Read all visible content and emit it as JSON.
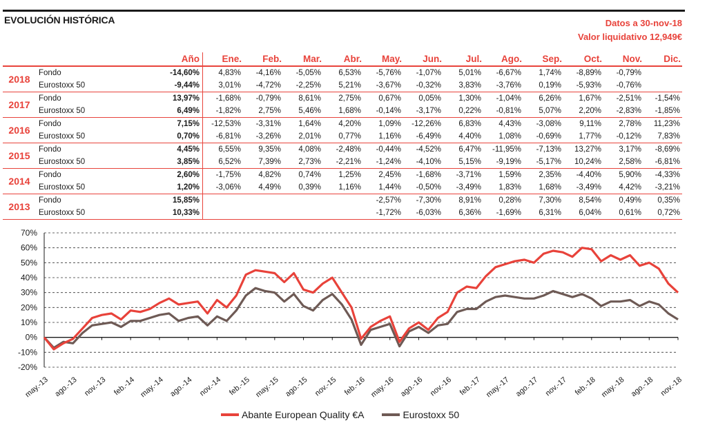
{
  "header": {
    "title": "EVOLUCIÓN HISTÓRICA",
    "date_line": "Datos a 30-nov-18",
    "nav_line": "Valor liquidativo 12,949€"
  },
  "table": {
    "columns": [
      "Año",
      "Ene.",
      "Feb.",
      "Mar.",
      "Abr.",
      "May.",
      "Jun.",
      "Jul.",
      "Ago.",
      "Sep.",
      "Oct.",
      "Nov.",
      "Dic."
    ],
    "years": [
      {
        "year": "2018",
        "rows": [
          {
            "label": "Fondo",
            "ytd": "-14,60%",
            "months": [
              "4,83%",
              "-4,16%",
              "-5,05%",
              "6,53%",
              "-5,76%",
              "-1,07%",
              "5,01%",
              "-6,67%",
              "1,74%",
              "-8,89%",
              "-0,79%",
              ""
            ]
          },
          {
            "label": "Eurostoxx 50",
            "ytd": "-9,44%",
            "months": [
              "3,01%",
              "-4,72%",
              "-2,25%",
              "5,21%",
              "-3,67%",
              "-0,32%",
              "3,83%",
              "-3,76%",
              "0,19%",
              "-5,93%",
              "-0,76%",
              ""
            ]
          }
        ]
      },
      {
        "year": "2017",
        "rows": [
          {
            "label": "Fondo",
            "ytd": "13,97%",
            "months": [
              "-1,68%",
              "-0,79%",
              "8,61%",
              "2,75%",
              "0,67%",
              "0,05%",
              "1,30%",
              "-1,04%",
              "6,26%",
              "1,67%",
              "-2,51%",
              "-1,54%"
            ]
          },
          {
            "label": "Eurostoxx 50",
            "ytd": "6,49%",
            "months": [
              "-1,82%",
              "2,75%",
              "5,46%",
              "1,68%",
              "-0,14%",
              "-3,17%",
              "0,22%",
              "-0,81%",
              "5,07%",
              "2,20%",
              "-2,83%",
              "-1,85%"
            ]
          }
        ]
      },
      {
        "year": "2016",
        "rows": [
          {
            "label": "Fondo",
            "ytd": "7,15%",
            "months": [
              "-12,53%",
              "-3,31%",
              "1,64%",
              "4,20%",
              "1,09%",
              "-12,26%",
              "6,83%",
              "4,43%",
              "-3,08%",
              "9,11%",
              "2,78%",
              "11,23%"
            ]
          },
          {
            "label": "Eurostoxx 50",
            "ytd": "0,70%",
            "months": [
              "-6,81%",
              "-3,26%",
              "2,01%",
              "0,77%",
              "1,16%",
              "-6,49%",
              "4,40%",
              "1,08%",
              "-0,69%",
              "1,77%",
              "-0,12%",
              "7,83%"
            ]
          }
        ]
      },
      {
        "year": "2015",
        "rows": [
          {
            "label": "Fondo",
            "ytd": "4,45%",
            "months": [
              "6,55%",
              "9,35%",
              "4,08%",
              "-2,48%",
              "-0,44%",
              "-4,52%",
              "6,47%",
              "-11,95%",
              "-7,13%",
              "13,27%",
              "3,17%",
              "-8,69%"
            ]
          },
          {
            "label": "Eurostoxx 50",
            "ytd": "3,85%",
            "months": [
              "6,52%",
              "7,39%",
              "2,73%",
              "-2,21%",
              "-1,24%",
              "-4,10%",
              "5,15%",
              "-9,19%",
              "-5,17%",
              "10,24%",
              "2,58%",
              "-6,81%"
            ]
          }
        ]
      },
      {
        "year": "2014",
        "rows": [
          {
            "label": "Fondo",
            "ytd": "2,60%",
            "months": [
              "-1,75%",
              "4,82%",
              "0,74%",
              "1,25%",
              "2,45%",
              "-1,68%",
              "-3,71%",
              "1,59%",
              "2,35%",
              "-4,40%",
              "5,90%",
              "-4,33%"
            ]
          },
          {
            "label": "Eurostoxx 50",
            "ytd": "1,20%",
            "months": [
              "-3,06%",
              "4,49%",
              "0,39%",
              "1,16%",
              "1,44%",
              "-0,50%",
              "-3,49%",
              "1,83%",
              "1,68%",
              "-3,49%",
              "4,42%",
              "-3,21%"
            ]
          }
        ]
      },
      {
        "year": "2013",
        "rows": [
          {
            "label": "Fondo",
            "ytd": "15,85%",
            "months": [
              "",
              "",
              "",
              "",
              "-2,57%",
              "-7,30%",
              "8,91%",
              "0,28%",
              "7,30%",
              "8,54%",
              "0,49%",
              "0,35%"
            ]
          },
          {
            "label": "Eurostoxx 50",
            "ytd": "10,33%",
            "months": [
              "",
              "",
              "",
              "",
              "-1,72%",
              "-6,03%",
              "6,36%",
              "-1,69%",
              "6,31%",
              "6,04%",
              "0,61%",
              "0,72%"
            ]
          }
        ]
      }
    ]
  },
  "chart_data": {
    "type": "line",
    "title": "",
    "xlabel": "",
    "ylabel": "",
    "ylim": [
      -20,
      70
    ],
    "yticks": [
      "70%",
      "60%",
      "50%",
      "40%",
      "30%",
      "20%",
      "10%",
      "0%",
      "-10%",
      "-20%"
    ],
    "ytick_values": [
      70,
      60,
      50,
      40,
      30,
      20,
      10,
      0,
      -10,
      -20
    ],
    "xticks": [
      "may.-13",
      "ago.-13",
      "nov.-13",
      "feb.-14",
      "may.-14",
      "ago.-14",
      "nov.-14",
      "feb.-15",
      "may.-15",
      "ago.-15",
      "nov.-15",
      "feb.-16",
      "may.-16",
      "ago.-16",
      "nov.-16",
      "feb.-17",
      "may.-17",
      "ago.-17",
      "nov.-17",
      "feb.-18",
      "may.-18",
      "ago.-18",
      "nov.-18"
    ],
    "grid": "horizontal-dashed",
    "legend": "bottom",
    "colors": {
      "fund": "#e8423a",
      "index": "#6e5a55"
    },
    "x": [
      "may.-13",
      "jun.-13",
      "jul.-13",
      "ago.-13",
      "sep.-13",
      "oct.-13",
      "nov.-13",
      "dic.-13",
      "ene.-14",
      "feb.-14",
      "mar.-14",
      "abr.-14",
      "may.-14",
      "jun.-14",
      "jul.-14",
      "ago.-14",
      "sep.-14",
      "oct.-14",
      "nov.-14",
      "dic.-14",
      "ene.-15",
      "feb.-15",
      "mar.-15",
      "abr.-15",
      "may.-15",
      "jun.-15",
      "jul.-15",
      "ago.-15",
      "sep.-15",
      "oct.-15",
      "nov.-15",
      "dic.-15",
      "ene.-16",
      "feb.-16",
      "mar.-16",
      "abr.-16",
      "may.-16",
      "jun.-16",
      "jul.-16",
      "ago.-16",
      "sep.-16",
      "oct.-16",
      "nov.-16",
      "dic.-16",
      "ene.-17",
      "feb.-17",
      "mar.-17",
      "abr.-17",
      "may.-17",
      "jun.-17",
      "jul.-17",
      "ago.-17",
      "sep.-17",
      "oct.-17",
      "nov.-17",
      "dic.-17",
      "ene.-18",
      "feb.-18",
      "mar.-18",
      "abr.-18",
      "may.-18",
      "jun.-18",
      "jul.-18",
      "ago.-18",
      "sep.-18",
      "oct.-18",
      "nov.-18"
    ],
    "series": [
      {
        "name": "Abante European Quality €A",
        "values": [
          0,
          -8,
          -4,
          -1,
          6,
          13,
          15,
          16,
          12,
          18,
          17,
          19,
          23,
          26,
          22,
          23,
          24,
          16,
          25,
          20,
          28,
          42,
          45,
          44,
          43,
          37,
          43,
          32,
          30,
          36,
          40,
          30,
          20,
          -1,
          7,
          11,
          14,
          -3,
          6,
          10,
          5,
          13,
          17,
          30,
          34,
          33,
          41,
          47,
          49,
          51,
          52,
          50,
          56,
          58,
          57,
          54,
          60,
          59,
          51,
          55,
          52,
          55,
          48,
          50,
          46,
          36,
          30
        ]
      },
      {
        "name": "Eurostoxx 50",
        "values": [
          0,
          -7,
          -3,
          -4,
          3,
          8,
          9,
          10,
          7,
          11,
          11,
          13,
          15,
          16,
          11,
          13,
          14,
          8,
          14,
          11,
          18,
          28,
          33,
          31,
          30,
          24,
          29,
          21,
          18,
          25,
          29,
          22,
          12,
          -5,
          5,
          7,
          9,
          -6,
          4,
          7,
          3,
          8,
          9,
          17,
          19,
          19,
          24,
          27,
          28,
          27,
          26,
          26,
          28,
          31,
          29,
          27,
          29,
          26,
          21,
          24,
          24,
          25,
          21,
          24,
          22,
          16,
          12
        ]
      }
    ]
  }
}
